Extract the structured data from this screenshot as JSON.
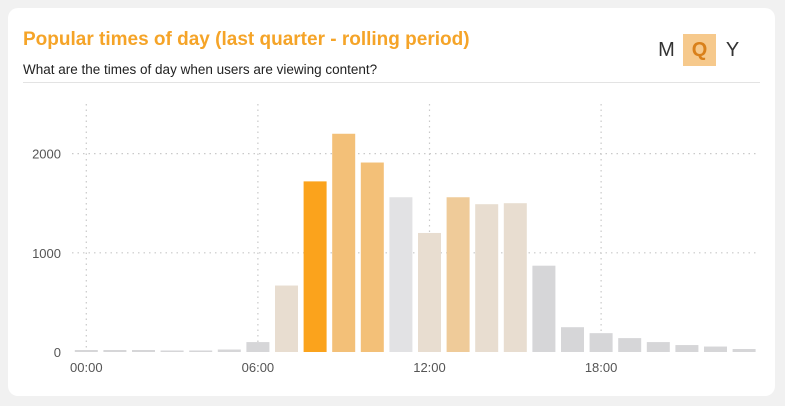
{
  "header": {
    "title": "Popular times of day (last quarter - rolling period)",
    "subtitle": "What are the times of day when users are viewing content?"
  },
  "period_toggle": {
    "options": [
      "M",
      "Q",
      "Y"
    ],
    "selected": "Q"
  },
  "colors": {
    "highlight": "#fba31c",
    "high": "#f3c078",
    "high_alt": "#efcb99",
    "medium": "#e8ddd0",
    "light": "#e2e2e4",
    "low": "#d6d6d8",
    "grid": "#c9c9c9"
  },
  "chart_data": {
    "type": "bar",
    "title": "",
    "xlabel": "",
    "ylabel": "",
    "x": [
      0,
      1,
      2,
      3,
      4,
      5,
      6,
      7,
      8,
      9,
      10,
      11,
      12,
      13,
      14,
      15,
      16,
      17,
      18,
      19,
      20,
      21,
      22,
      23
    ],
    "x_tick_values": [
      0,
      6,
      12,
      18
    ],
    "x_tick_labels": [
      "00:00",
      "06:00",
      "12:00",
      "18:00"
    ],
    "values": [
      20,
      20,
      20,
      15,
      15,
      25,
      100,
      670,
      1720,
      2200,
      1910,
      1560,
      1200,
      1560,
      1490,
      1500,
      870,
      250,
      190,
      140,
      100,
      70,
      55,
      30
    ],
    "bar_color_keys": [
      "low",
      "low",
      "low",
      "low",
      "low",
      "low",
      "low",
      "medium",
      "highlight",
      "high",
      "high",
      "light",
      "medium",
      "high_alt",
      "medium",
      "medium",
      "low",
      "low",
      "low",
      "low",
      "low",
      "low",
      "low",
      "low"
    ],
    "ylim": [
      0,
      2500
    ],
    "y_tick_values": [
      0,
      1000,
      2000
    ],
    "y_tick_labels": [
      "0",
      "1000",
      "2000"
    ],
    "grid": true,
    "grid_style": "dotted",
    "legend": "none"
  }
}
